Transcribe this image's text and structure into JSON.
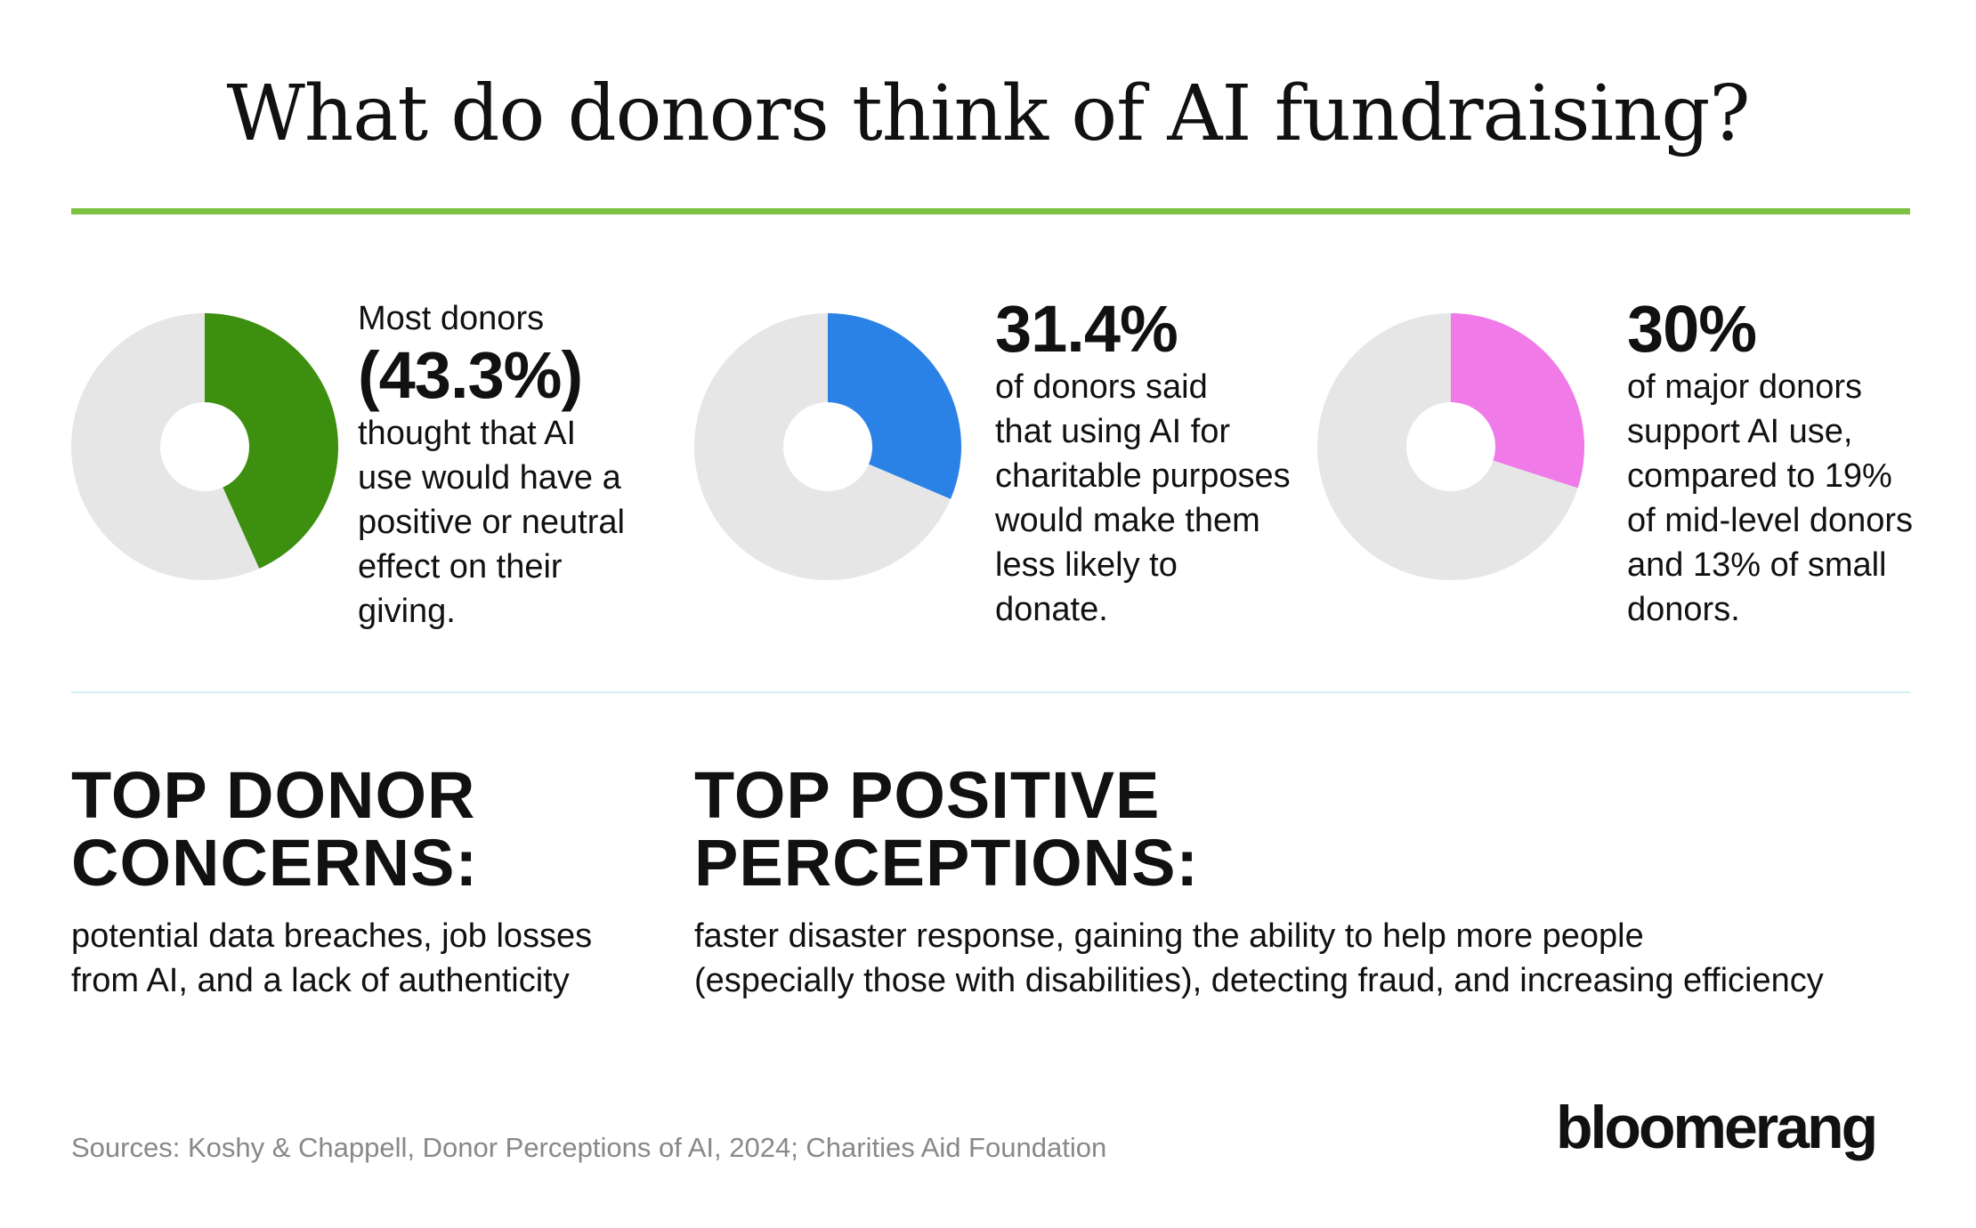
{
  "title": "What do donors think of AI fundraising?",
  "colors": {
    "accent_rule": "#7cc142",
    "divider": "#d6ecf7",
    "donut_track": "#e6e6e6",
    "donut_1": "#3d8f10",
    "donut_2": "#2b82e6",
    "donut_3": "#f07be8"
  },
  "chart_data": [
    {
      "type": "pie",
      "categories": [
        "",
        ""
      ],
      "values": [
        43.3,
        56.7
      ],
      "title": ""
    },
    {
      "type": "pie",
      "categories": [
        "",
        ""
      ],
      "values": [
        31.4,
        68.6
      ],
      "title": ""
    },
    {
      "type": "pie",
      "categories": [
        "",
        ""
      ],
      "values": [
        30,
        70
      ],
      "title": ""
    }
  ],
  "stats": [
    {
      "lead": "Most donors",
      "value": "(43.3%)",
      "lines": [
        "thought that AI",
        "use would have a",
        "positive or neutral",
        "effect on their",
        "giving."
      ]
    },
    {
      "value": "31.4%",
      "lines": [
        "of donors said",
        "that using AI for",
        "charitable purposes",
        "would make them",
        "less likely to",
        "donate."
      ]
    },
    {
      "value": "30%",
      "lines": [
        "of major donors",
        "support AI use,",
        "compared to 19%",
        "of mid-level donors",
        "and 13% of small",
        "donors."
      ]
    }
  ],
  "concerns": {
    "heading_lines": [
      "TOP DONOR",
      "CONCERNS:"
    ],
    "text_lines": [
      "potential data breaches, job losses",
      "from AI, and a lack of authenticity"
    ]
  },
  "positives": {
    "heading_lines": [
      "TOP POSITIVE",
      "PERCEPTIONS:"
    ],
    "text_lines": [
      "faster disaster response, gaining the ability to help more people",
      "(especially those with disabilities), detecting fraud, and increasing efficiency"
    ]
  },
  "sources": "Sources: Koshy & Chappell, Donor Perceptions of AI, 2024; Charities Aid Foundation",
  "logo": "bloomerang"
}
